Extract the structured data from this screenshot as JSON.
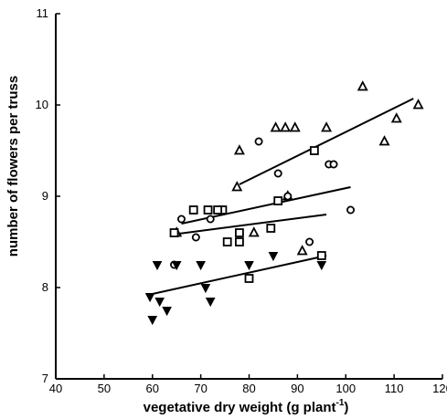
{
  "chart_data": {
    "type": "scatter",
    "title": "",
    "xlabel": "vegetative dry weight (g plant",
    "xlabel_superscript": "-1",
    "xlabel_close": ")",
    "ylabel": "number of flowers per truss",
    "xlim": [
      40,
      120
    ],
    "ylim": [
      7,
      11
    ],
    "x_ticks": [
      40,
      50,
      60,
      70,
      80,
      90,
      100,
      110,
      120
    ],
    "y_ticks": [
      7,
      8,
      9,
      10,
      11
    ],
    "x_tick_labels": [
      "40",
      "50",
      "60",
      "70",
      "80",
      "90",
      "100",
      "110",
      "120"
    ],
    "y_tick_labels": [
      "7",
      "8",
      "9",
      "10",
      "11"
    ],
    "grid": false,
    "legend": "none",
    "series": [
      {
        "marker": "triangle-up-open",
        "points": [
          [
            77.5,
            9.1
          ],
          [
            78,
            9.5
          ],
          [
            85.5,
            9.75
          ],
          [
            87.5,
            9.75
          ],
          [
            89.5,
            9.75
          ],
          [
            96,
            9.75
          ],
          [
            103.5,
            10.2
          ],
          [
            110.5,
            9.85
          ],
          [
            88,
            9.0
          ],
          [
            81,
            8.6
          ],
          [
            65,
            8.6
          ],
          [
            91,
            8.4
          ],
          [
            115,
            10.0
          ],
          [
            108,
            9.6
          ]
        ],
        "trend": [
          [
            78,
            9.13
          ],
          [
            114,
            10.07
          ]
        ]
      },
      {
        "marker": "circle-open",
        "points": [
          [
            66,
            8.75
          ],
          [
            72,
            8.75
          ],
          [
            82,
            9.6
          ],
          [
            86,
            9.25
          ],
          [
            92.5,
            8.5
          ],
          [
            96.5,
            9.35
          ],
          [
            101,
            8.85
          ],
          [
            64.5,
            8.25
          ],
          [
            69,
            8.55
          ],
          [
            88,
            9.0
          ],
          [
            97.5,
            9.35
          ]
        ],
        "trend": [
          [
            66,
            8.7
          ],
          [
            101,
            9.1
          ]
        ]
      },
      {
        "marker": "square-open",
        "points": [
          [
            64.5,
            8.6
          ],
          [
            68.5,
            8.85
          ],
          [
            71.5,
            8.85
          ],
          [
            74.5,
            8.85
          ],
          [
            73.5,
            8.85
          ],
          [
            75.5,
            8.5
          ],
          [
            78,
            8.6
          ],
          [
            78,
            8.5
          ],
          [
            84.5,
            8.65
          ],
          [
            86,
            8.95
          ],
          [
            93.5,
            9.5
          ],
          [
            95,
            8.35
          ],
          [
            80,
            8.1
          ]
        ],
        "trend": [
          [
            64,
            8.58
          ],
          [
            96,
            8.8
          ]
        ]
      },
      {
        "marker": "triangle-down-filled",
        "points": [
          [
            60,
            7.65
          ],
          [
            61,
            8.25
          ],
          [
            61.5,
            7.85
          ],
          [
            63,
            7.75
          ],
          [
            65,
            8.25
          ],
          [
            70,
            8.25
          ],
          [
            71,
            8.0
          ],
          [
            72,
            7.85
          ],
          [
            80,
            8.25
          ],
          [
            85,
            8.35
          ],
          [
            95,
            8.25
          ],
          [
            59.5,
            7.9
          ]
        ],
        "trend": [
          [
            60,
            7.93
          ],
          [
            96,
            8.35
          ]
        ]
      }
    ]
  }
}
